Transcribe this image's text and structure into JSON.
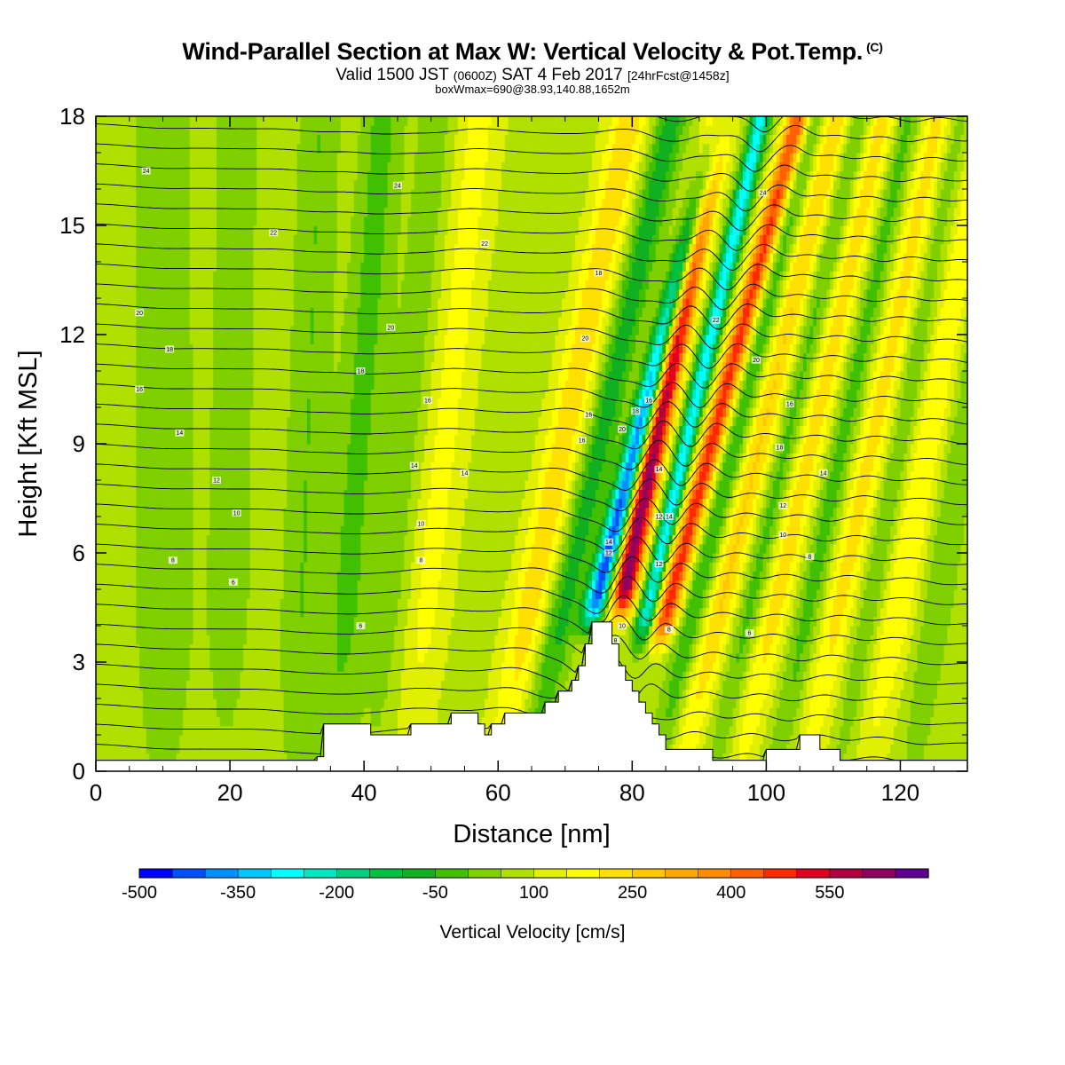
{
  "chart_data": {
    "type": "heatmap",
    "title": "Wind-Parallel Section at Max W: Vertical Velocity & Pot.Temp.",
    "title_mark": "(C)",
    "subtitle_main_a": "Valid 1500 JST",
    "subtitle_zulu": "(0600Z)",
    "subtitle_main_b": "SAT 4 Feb 2017",
    "subtitle_fcst": "[24hrFcst@1458z]",
    "subtitle2": "boxWmax=690@38.93,140.88,1652m",
    "xlabel": "Distance [nm]",
    "ylabel": "Height [Kft MSL]",
    "xlim": [
      0,
      130
    ],
    "ylim": [
      0,
      18
    ],
    "x_ticks": [
      "0",
      "20",
      "40",
      "60",
      "80",
      "100",
      "120"
    ],
    "y_ticks": [
      "0",
      "3",
      "6",
      "9",
      "12",
      "15",
      "18"
    ],
    "colorbar": {
      "title": "Vertical Velocity [cm/s]",
      "labels": [
        "-500",
        "-350",
        "-200",
        "-50",
        "100",
        "250",
        "400",
        "550"
      ],
      "colors": [
        "#0000ff",
        "#0050ff",
        "#0090ff",
        "#00c8ff",
        "#00ffff",
        "#00e8c0",
        "#00d080",
        "#00c040",
        "#10b020",
        "#40c000",
        "#80d000",
        "#b0e000",
        "#e0f000",
        "#ffff00",
        "#ffe000",
        "#ffc800",
        "#ffa800",
        "#ff8c00",
        "#ff6000",
        "#ff2800",
        "#e00020",
        "#b00040",
        "#900060",
        "#600090"
      ]
    },
    "terrain": [
      [
        0,
        0.3
      ],
      [
        33,
        0.3
      ],
      [
        33,
        0.4
      ],
      [
        34,
        0.4
      ],
      [
        34,
        1.3
      ],
      [
        41,
        1.3
      ],
      [
        41,
        1.0
      ],
      [
        47,
        1.0
      ],
      [
        47,
        1.3
      ],
      [
        53,
        1.3
      ],
      [
        53,
        1.6
      ],
      [
        57,
        1.6
      ],
      [
        57,
        1.3
      ],
      [
        58,
        1.3
      ],
      [
        58,
        1.0
      ],
      [
        59,
        1.0
      ],
      [
        59,
        1.3
      ],
      [
        61,
        1.3
      ],
      [
        61,
        1.6
      ],
      [
        67,
        1.6
      ],
      [
        67,
        1.9
      ],
      [
        69,
        1.9
      ],
      [
        69,
        2.2
      ],
      [
        71,
        2.2
      ],
      [
        71,
        2.5
      ],
      [
        72,
        2.5
      ],
      [
        72,
        2.9
      ],
      [
        73,
        2.9
      ],
      [
        73,
        3.5
      ],
      [
        74,
        3.5
      ],
      [
        74,
        4.1
      ],
      [
        77,
        4.1
      ],
      [
        77,
        3.5
      ],
      [
        78,
        3.5
      ],
      [
        78,
        2.9
      ],
      [
        79,
        2.9
      ],
      [
        79,
        2.5
      ],
      [
        80,
        2.5
      ],
      [
        80,
        2.2
      ],
      [
        81,
        2.2
      ],
      [
        81,
        1.9
      ],
      [
        82,
        1.9
      ],
      [
        82,
        1.6
      ],
      [
        83,
        1.6
      ],
      [
        83,
        1.3
      ],
      [
        84,
        1.3
      ],
      [
        84,
        1.0
      ],
      [
        85,
        1.0
      ],
      [
        85,
        0.6
      ],
      [
        92,
        0.6
      ],
      [
        92,
        0.3
      ],
      [
        100,
        0.3
      ],
      [
        100,
        0.6
      ],
      [
        105,
        0.6
      ],
      [
        105,
        1.0
      ],
      [
        108,
        1.0
      ],
      [
        108,
        0.6
      ],
      [
        111,
        0.6
      ],
      [
        111,
        0.3
      ],
      [
        130,
        0.3
      ]
    ],
    "w_features": [
      {
        "x0": 76.5,
        "w": 1.7,
        "tilt": 1.4,
        "amp": -520,
        "zmin": 3.5
      },
      {
        "x0": 80.0,
        "w": 1.9,
        "tilt": 1.1,
        "amp": 560,
        "zmin": 3.8
      },
      {
        "x0": 84.3,
        "w": 1.4,
        "tilt": 1.25,
        "amp": -360,
        "zmin": 3.0
      },
      {
        "x0": 87.5,
        "w": 1.8,
        "tilt": 1.45,
        "amp": 400,
        "zmin": 3.0
      },
      {
        "x0": 71.5,
        "w": 2.5,
        "tilt": 1.2,
        "amp": -160,
        "zmin": 0
      },
      {
        "x0": 66.5,
        "w": 3.0,
        "tilt": 1.1,
        "amp": 160,
        "zmin": 0
      },
      {
        "x0": 91.5,
        "w": 2.0,
        "tilt": 1.3,
        "amp": -150,
        "zmin": 0
      },
      {
        "x0": 95.0,
        "w": 2.5,
        "tilt": 1.3,
        "amp": 180,
        "zmin": 0
      },
      {
        "x0": 99.5,
        "w": 2.0,
        "tilt": 1.2,
        "amp": -120,
        "zmin": 0
      },
      {
        "x0": 103.0,
        "w": 2.5,
        "tilt": 1.2,
        "amp": 150,
        "zmin": 0
      },
      {
        "x0": 108.0,
        "w": 2.0,
        "tilt": 1.1,
        "amp": -110,
        "zmin": 0
      },
      {
        "x0": 112.5,
        "w": 2.5,
        "tilt": 1.1,
        "amp": 140,
        "zmin": 0
      },
      {
        "x0": 117.0,
        "w": 2.0,
        "tilt": 1.0,
        "amp": -90,
        "zmin": 0
      },
      {
        "x0": 121.0,
        "w": 3.0,
        "tilt": 1.0,
        "amp": 120,
        "zmin": 0
      },
      {
        "x0": 126.5,
        "w": 2.5,
        "tilt": 0.8,
        "amp": -80,
        "zmin": 0
      },
      {
        "x0": 50.0,
        "w": 3.5,
        "tilt": 0.6,
        "amp": 90,
        "zmin": 0
      },
      {
        "x0": 45.0,
        "w": 3.0,
        "tilt": 0.5,
        "amp": -60,
        "zmin": 0
      },
      {
        "x0": 38.0,
        "w": 3.0,
        "tilt": 0.4,
        "amp": -100,
        "zmin": 0
      },
      {
        "x0": 31.0,
        "w": 3.0,
        "tilt": 0.2,
        "amp": -80,
        "zmin": 0
      },
      {
        "x0": 10.0,
        "w": 4.0,
        "tilt": 0.0,
        "amp": -80,
        "zmin": 0
      },
      {
        "x0": 20.0,
        "w": 4.0,
        "tilt": 0.1,
        "amp": -50,
        "zmin": 0
      }
    ],
    "contour_labels": [
      {
        "x": 7.5,
        "z": 16.5,
        "text": "24"
      },
      {
        "x": 45,
        "z": 16.1,
        "text": "24"
      },
      {
        "x": 99.5,
        "z": 15.9,
        "text": "24"
      },
      {
        "x": 26.5,
        "z": 14.8,
        "text": "22"
      },
      {
        "x": 58,
        "z": 14.5,
        "text": "22"
      },
      {
        "x": 75,
        "z": 13.7,
        "text": "18"
      },
      {
        "x": 6.5,
        "z": 12.6,
        "text": "20"
      },
      {
        "x": 44,
        "z": 12.2,
        "text": "20"
      },
      {
        "x": 73,
        "z": 11.9,
        "text": "20"
      },
      {
        "x": 92.5,
        "z": 12.4,
        "text": "22"
      },
      {
        "x": 11,
        "z": 11.6,
        "text": "18"
      },
      {
        "x": 39.5,
        "z": 11.0,
        "text": "18"
      },
      {
        "x": 98.5,
        "z": 11.3,
        "text": "20"
      },
      {
        "x": 6.5,
        "z": 10.5,
        "text": "16"
      },
      {
        "x": 49.5,
        "z": 10.2,
        "text": "16"
      },
      {
        "x": 73.5,
        "z": 9.8,
        "text": "16"
      },
      {
        "x": 80.5,
        "z": 9.9,
        "text": "18"
      },
      {
        "x": 82.5,
        "z": 10.2,
        "text": "16"
      },
      {
        "x": 103.5,
        "z": 10.1,
        "text": "16"
      },
      {
        "x": 12.5,
        "z": 9.3,
        "text": "14"
      },
      {
        "x": 72.5,
        "z": 9.1,
        "text": "16"
      },
      {
        "x": 78.5,
        "z": 9.4,
        "text": "20"
      },
      {
        "x": 102,
        "z": 8.9,
        "text": "18"
      },
      {
        "x": 47.5,
        "z": 8.4,
        "text": "14"
      },
      {
        "x": 55,
        "z": 8.2,
        "text": "14"
      },
      {
        "x": 84,
        "z": 8.3,
        "text": "14"
      },
      {
        "x": 108.5,
        "z": 8.2,
        "text": "14"
      },
      {
        "x": 18,
        "z": 8.0,
        "text": "12"
      },
      {
        "x": 102.5,
        "z": 7.3,
        "text": "12"
      },
      {
        "x": 21,
        "z": 7.1,
        "text": "10"
      },
      {
        "x": 84,
        "z": 7.0,
        "text": "12"
      },
      {
        "x": 85.5,
        "z": 7.0,
        "text": "14"
      },
      {
        "x": 48.5,
        "z": 6.8,
        "text": "10"
      },
      {
        "x": 102.5,
        "z": 6.5,
        "text": "10"
      },
      {
        "x": 76.5,
        "z": 6.3,
        "text": "14"
      },
      {
        "x": 76.5,
        "z": 6.0,
        "text": "12"
      },
      {
        "x": 11.5,
        "z": 5.8,
        "text": "8"
      },
      {
        "x": 48.5,
        "z": 5.8,
        "text": "8"
      },
      {
        "x": 106.5,
        "z": 5.9,
        "text": "8"
      },
      {
        "x": 84,
        "z": 5.7,
        "text": "12"
      },
      {
        "x": 20.5,
        "z": 5.2,
        "text": "6"
      },
      {
        "x": 39.5,
        "z": 4.0,
        "text": "6"
      },
      {
        "x": 85.5,
        "z": 3.9,
        "text": "8"
      },
      {
        "x": 97.5,
        "z": 3.8,
        "text": "6"
      },
      {
        "x": 78.5,
        "z": 4.0,
        "text": "10"
      },
      {
        "x": 77.5,
        "z": 3.6,
        "text": "8"
      }
    ]
  }
}
